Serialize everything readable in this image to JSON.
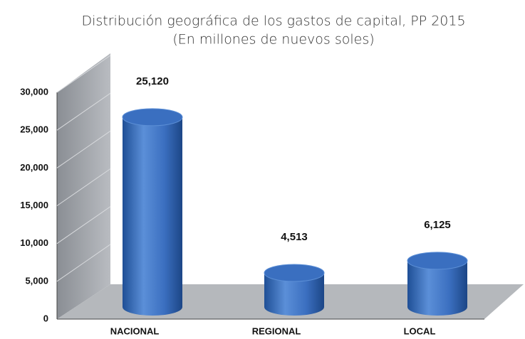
{
  "chart_data": {
    "type": "bar",
    "title": "Distribución geográfica de los gastos de capital, PP 2015",
    "subtitle": "(En millones de nuevos soles)",
    "categories": [
      "NACIONAL",
      "REGIONAL",
      "LOCAL"
    ],
    "values": [
      25120,
      4513,
      6125
    ],
    "value_labels": [
      "25,120",
      "4,513",
      "6,125"
    ],
    "color": "#3a6fc0",
    "ylim": [
      0,
      30000
    ],
    "yticks": [
      0,
      {
        "value": 5000,
        "label": "5,000"
      },
      {
        "value": 10000,
        "label": "10,000"
      },
      {
        "value": 15000,
        "label": "15,000"
      },
      {
        "value": 20000,
        "label": "20,000"
      },
      {
        "value": 25000,
        "label": "25,000"
      },
      {
        "value": 30000,
        "label": "30,000"
      }
    ],
    "grid": true
  }
}
